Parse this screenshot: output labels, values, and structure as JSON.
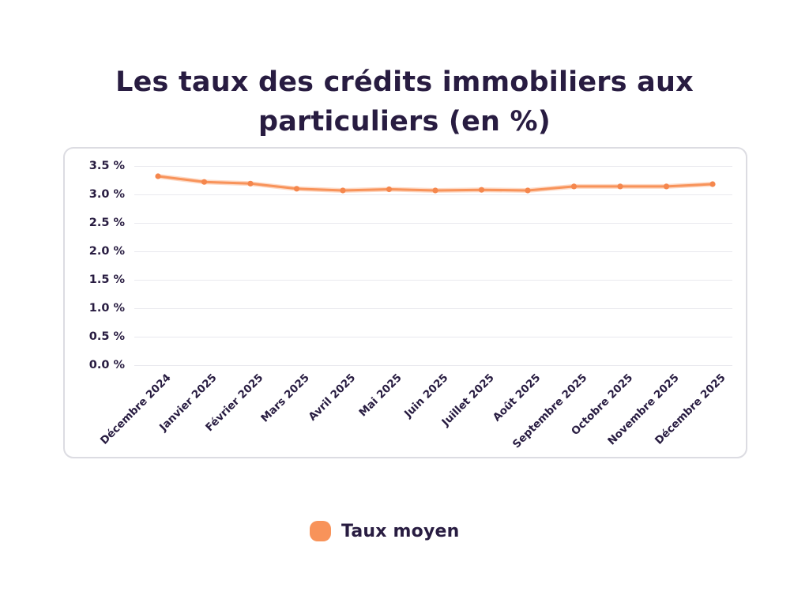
{
  "title": {
    "lines": [
      "Les taux des crédits immobiliers aux",
      "particuliers (en %)"
    ]
  },
  "legend": {
    "label": "Taux moyen"
  },
  "colors": {
    "accent_orange": "#f8935a",
    "point_orange": "#f5874d",
    "text_navy": "#281c41",
    "gridline": "#e9e9ee",
    "card_border": "#dcdce2"
  },
  "chart_data": {
    "type": "line",
    "title": "Les taux des crédits immobiliers aux particuliers (en %)",
    "categories": [
      "Décembre 2024",
      "Janvier 2025",
      "Février 2025",
      "Mars 2025",
      "Avril 2025",
      "Mai 2025",
      "Juin 2025",
      "Juillet 2025",
      "Août 2025",
      "Septembre 2025",
      "Octobre 2025",
      "Novembre 2025",
      "Décembre 2025"
    ],
    "series": [
      {
        "name": "Taux moyen",
        "color": "#f8935a",
        "values": [
          3.32,
          3.22,
          3.19,
          3.1,
          3.07,
          3.09,
          3.07,
          3.08,
          3.07,
          3.14,
          3.14,
          3.14,
          3.18
        ]
      }
    ],
    "xlabel": "",
    "ylabel": "",
    "ylim": [
      0.0,
      3.5
    ],
    "y_tick_step": 0.5,
    "y_tick_labels": [
      "3.5 %",
      "3.0 %",
      "2.5 %",
      "2.0 %",
      "1.5 %",
      "1.0 %",
      "0.5 %",
      "0.0 %"
    ],
    "grid": true,
    "legend_position": "bottom"
  }
}
